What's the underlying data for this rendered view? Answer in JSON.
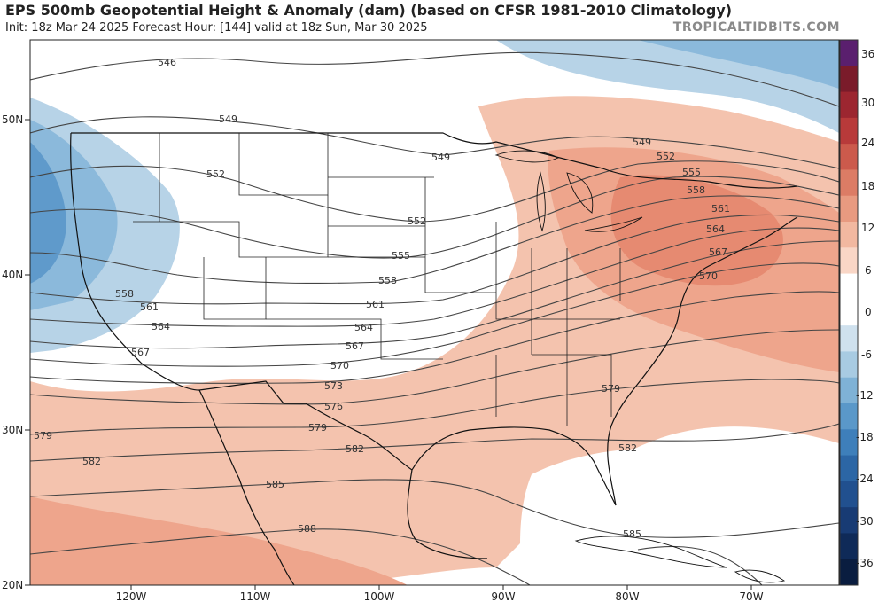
{
  "header": {
    "title": "EPS 500mb Geopotential Height & Anomaly (dam) (based on CFSR 1981-2010 Climatology)",
    "subtitle": "Init: 18z Mar 24 2025   Forecast Hour: [144]   valid at 18z Sun, Mar 30 2025",
    "brand": "TROPICALTIDBITS.COM"
  },
  "axes": {
    "longitude_labels": [
      "120W",
      "110W",
      "100W",
      "90W",
      "80W",
      "70W"
    ],
    "latitude_labels": [
      "50N",
      "40N",
      "30N",
      "20N"
    ]
  },
  "colorbar": {
    "labels": [
      "36",
      "30",
      "24",
      "18",
      "12",
      "6",
      "0",
      "-6",
      "-12",
      "-18",
      "-24",
      "-30",
      "-36"
    ],
    "colors": [
      "#5a1f6e",
      "#7a1b2a",
      "#9c2630",
      "#b83a3a",
      "#cc5a4c",
      "#dc7c65",
      "#e89a80",
      "#f2b8a0",
      "#f9d6c6",
      "#ffffff",
      "#ffffff",
      "#cfe1ee",
      "#a8cbe2",
      "#7fb2d6",
      "#5a98c9",
      "#3e7fba",
      "#2c66a5",
      "#21508f",
      "#183b74",
      "#0f2a58",
      "#0a1d40"
    ]
  },
  "contours": {
    "labels": [
      "546",
      "549",
      "549",
      "549",
      "552",
      "552",
      "552",
      "555",
      "555",
      "558",
      "558",
      "558",
      "561",
      "561",
      "561",
      "564",
      "564",
      "564",
      "567",
      "567",
      "567",
      "570",
      "570",
      "573",
      "576",
      "579",
      "579",
      "579",
      "582",
      "582",
      "582",
      "585",
      "585",
      "588"
    ]
  },
  "map": {
    "region": "CONUS",
    "land_color": "#ffffff",
    "boundary_color": "#111111",
    "positive_anomaly_color": "#f2b8a0",
    "negative_anomaly_color": "#a8cbe2"
  }
}
